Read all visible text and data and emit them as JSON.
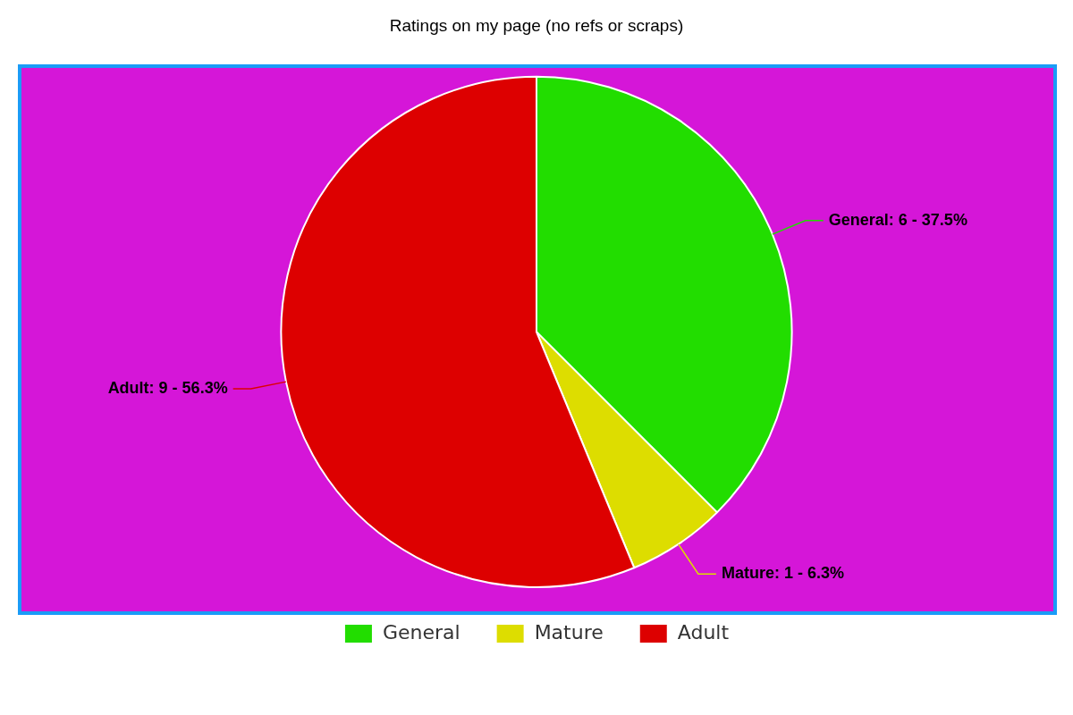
{
  "chart_data": {
    "type": "pie",
    "title": "Ratings on my page (no refs or scraps)",
    "categories": [
      "General",
      "Mature",
      "Adult"
    ],
    "values": [
      6,
      1,
      9
    ],
    "colors": [
      "#22dd00",
      "#dddd00",
      "#dd0000"
    ],
    "value_labels": [
      "General: 6 - 37.5%",
      "Mature: 1 - 6.3%",
      "Adult: 9 - 56.3%"
    ],
    "legend": "bottom"
  }
}
